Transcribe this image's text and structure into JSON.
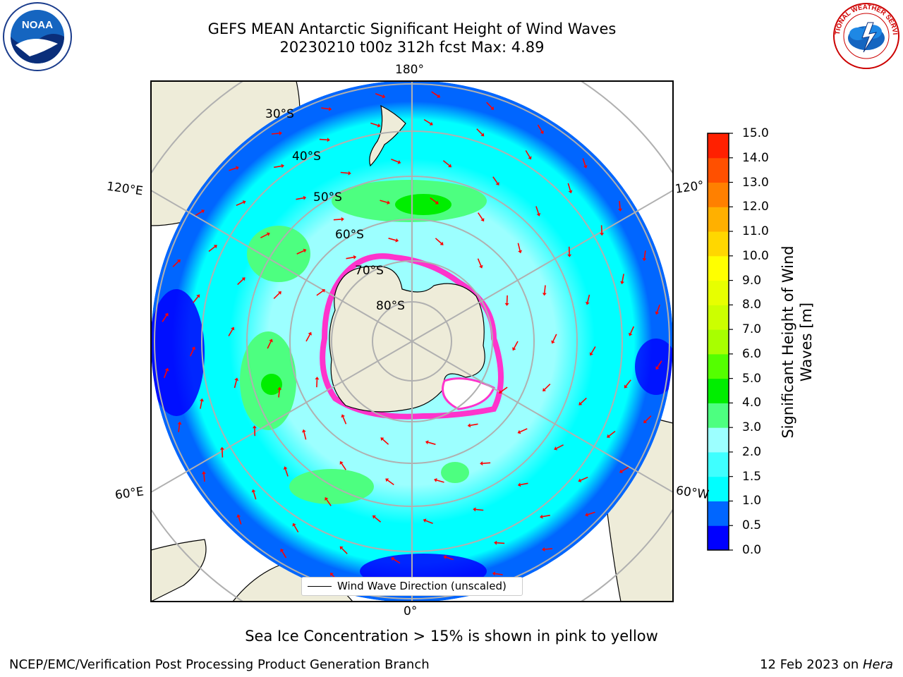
{
  "title": {
    "line1": "GEFS MEAN Antarctic Significant Height of Wind Waves",
    "line2": "20230210 t00z 312h fcst   Max: 4.89"
  },
  "map": {
    "projection": "south-polar-stereographic",
    "longitude_labels": {
      "top": "180°",
      "bottom": "0°",
      "upper_left": "120°E",
      "lower_left": "60°E",
      "upper_right": "120°",
      "lower_right": "60°W"
    },
    "latitude_labels": [
      "30°S",
      "40°S",
      "50°S",
      "60°S",
      "70°S",
      "80°S"
    ],
    "land_color": "#eeecd9",
    "gridline_color": "#b0b0b0",
    "arrow_color": "#ff0000"
  },
  "legend": {
    "label": "Wind Wave Direction (unscaled)"
  },
  "colorbar": {
    "title": "Significant Height of Wind Waves [m]",
    "ticks": [
      "0.0",
      "0.5",
      "1.0",
      "1.5",
      "2.0",
      "3.0",
      "4.0",
      "5.0",
      "6.0",
      "7.0",
      "8.0",
      "9.0",
      "10.0",
      "11.0",
      "12.0",
      "13.0",
      "14.0",
      "15.0"
    ],
    "colors": [
      "#0000ff",
      "#0066ff",
      "#00ffff",
      "#3fffff",
      "#9cffff",
      "#4dff80",
      "#00ee00",
      "#54ff00",
      "#a8ff00",
      "#ccff00",
      "#e7ff00",
      "#ffff00",
      "#ffd700",
      "#ffb000",
      "#ff8000",
      "#ff5000",
      "#ff2000"
    ]
  },
  "caption": "Sea Ice Concentration > 15% is shown in pink to yellow",
  "footer": {
    "left": "NCEP/EMC/Verification Post Processing Product Generation Branch",
    "right_date": "12 Feb 2023 on ",
    "right_machine": "Hera"
  },
  "logos": {
    "left": "NOAA",
    "right": "NATIONAL WEATHER SERVICE"
  }
}
